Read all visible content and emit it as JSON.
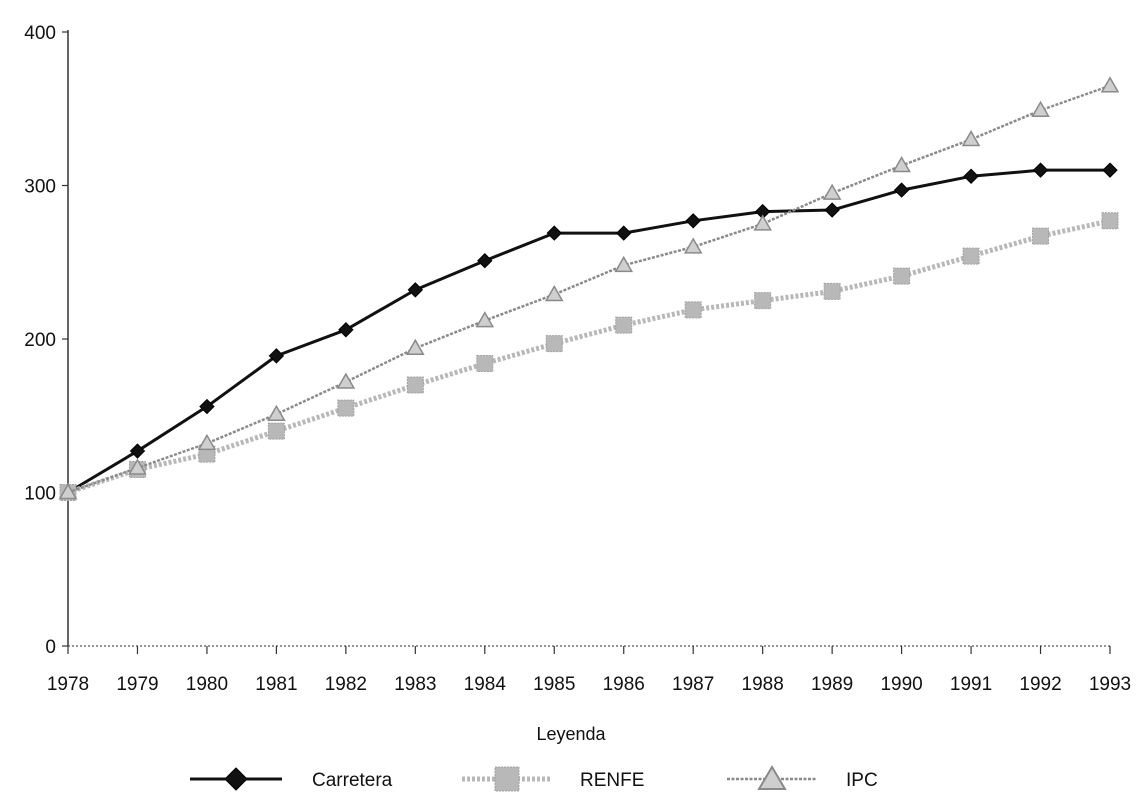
{
  "chart_data": {
    "type": "line",
    "title": "",
    "xlabel": "",
    "ylabel": "",
    "categories": [
      "1978",
      "1979",
      "1980",
      "1981",
      "1982",
      "1983",
      "1984",
      "1985",
      "1986",
      "1987",
      "1988",
      "1989",
      "1990",
      "1991",
      "1992",
      "1993"
    ],
    "ylim": [
      0,
      400
    ],
    "yticks": [
      "0",
      "100",
      "200",
      "300",
      "400"
    ],
    "grid": false,
    "legend": {
      "title": "Leyenda",
      "placement": "bottom"
    },
    "series": [
      {
        "name": "Carretera",
        "color": "#111111",
        "marker": "diamond",
        "values": [
          100,
          127,
          156,
          189,
          206,
          232,
          251,
          269,
          269,
          277,
          283,
          284,
          297,
          306,
          310,
          310
        ]
      },
      {
        "name": "RENFE",
        "color": "#b8b8b8",
        "marker": "square",
        "values": [
          100,
          115,
          125,
          140,
          155,
          170,
          184,
          197,
          209,
          219,
          225,
          231,
          241,
          254,
          267,
          277
        ]
      },
      {
        "name": "IPC",
        "color": "#8a8a8a",
        "marker": "triangle",
        "values": [
          100,
          116,
          132,
          151,
          172,
          194,
          212,
          229,
          248,
          260,
          275,
          295,
          313,
          330,
          349,
          365
        ]
      }
    ]
  }
}
